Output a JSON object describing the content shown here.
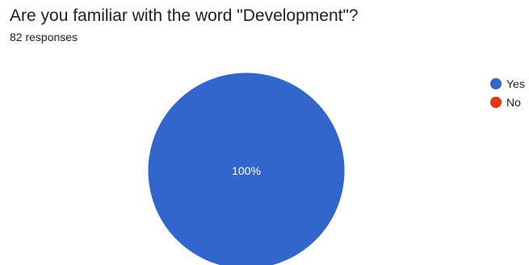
{
  "question": {
    "title": "Are you familiar with the word \"Development\"?",
    "responses": "82 responses"
  },
  "chart_data": {
    "type": "pie",
    "categories": [
      "Yes",
      "No"
    ],
    "values": [
      100,
      0
    ],
    "value_unit": "%",
    "data_labels": [
      "100%",
      ""
    ],
    "legend_position": "top-right",
    "colors": [
      "#3366cc",
      "#dc3912"
    ]
  }
}
